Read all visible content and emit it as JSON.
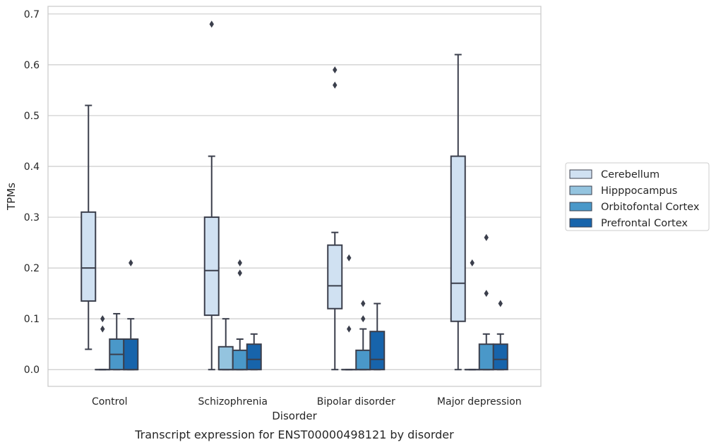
{
  "chart_data": {
    "type": "boxplot",
    "caption": "Transcript expression for ENST00000498121 by disorder",
    "xlabel": "Disorder",
    "ylabel": "TPMs",
    "ylim": [
      -0.033,
      0.715
    ],
    "yticks": [
      0.0,
      0.1,
      0.2,
      0.3,
      0.4,
      0.5,
      0.6,
      0.7
    ],
    "ytick_labels": [
      "0.0",
      "0.1",
      "0.2",
      "0.3",
      "0.4",
      "0.5",
      "0.6",
      "0.7"
    ],
    "grid": "horizontal",
    "legend_position": "right",
    "categories": [
      "Control",
      "Schizophrenia",
      "Bipolar disorder",
      "Major depression"
    ],
    "series": [
      {
        "name": "Cerebellum",
        "color": "#d0e1f2",
        "boxes": [
          {
            "whislo": 0.04,
            "q1": 0.135,
            "med": 0.2,
            "q3": 0.31,
            "whishi": 0.52,
            "fliers": []
          },
          {
            "whislo": 0.0,
            "q1": 0.107,
            "med": 0.195,
            "q3": 0.3,
            "whishi": 0.42,
            "fliers": [
              0.68
            ]
          },
          {
            "whislo": 0.0,
            "q1": 0.12,
            "med": 0.165,
            "q3": 0.245,
            "whishi": 0.27,
            "fliers": [
              0.56,
              0.59
            ]
          },
          {
            "whislo": 0.0,
            "q1": 0.095,
            "med": 0.17,
            "q3": 0.42,
            "whishi": 0.62,
            "fliers": []
          }
        ]
      },
      {
        "name": "Hipppocampus",
        "color": "#94c4df",
        "boxes": [
          {
            "whislo": 0.0,
            "q1": 0.0,
            "med": 0.0,
            "q3": 0.0,
            "whishi": 0.0,
            "fliers": [
              0.08,
              0.1
            ]
          },
          {
            "whislo": 0.0,
            "q1": 0.0,
            "med": 0.0,
            "q3": 0.045,
            "whishi": 0.1,
            "fliers": []
          },
          {
            "whislo": 0.0,
            "q1": 0.0,
            "med": 0.0,
            "q3": 0.0,
            "whishi": 0.0,
            "fliers": [
              0.08,
              0.22
            ]
          },
          {
            "whislo": 0.0,
            "q1": 0.0,
            "med": 0.0,
            "q3": 0.0,
            "whishi": 0.0,
            "fliers": [
              0.21
            ]
          }
        ]
      },
      {
        "name": "Orbitofontal Cortex",
        "color": "#4a98c9",
        "boxes": [
          {
            "whislo": 0.0,
            "q1": 0.0,
            "med": 0.03,
            "q3": 0.06,
            "whishi": 0.11,
            "fliers": []
          },
          {
            "whislo": 0.0,
            "q1": 0.0,
            "med": 0.0,
            "q3": 0.038,
            "whishi": 0.06,
            "fliers": [
              0.19,
              0.21
            ]
          },
          {
            "whislo": 0.0,
            "q1": 0.0,
            "med": 0.0,
            "q3": 0.038,
            "whishi": 0.08,
            "fliers": [
              0.1,
              0.13
            ]
          },
          {
            "whislo": 0.0,
            "q1": 0.0,
            "med": 0.0,
            "q3": 0.05,
            "whishi": 0.07,
            "fliers": [
              0.15,
              0.26
            ]
          }
        ]
      },
      {
        "name": "Prefrontal Cortex",
        "color": "#1764ab",
        "boxes": [
          {
            "whislo": 0.0,
            "q1": 0.0,
            "med": 0.0,
            "q3": 0.06,
            "whishi": 0.1,
            "fliers": [
              0.21
            ]
          },
          {
            "whislo": 0.0,
            "q1": 0.0,
            "med": 0.02,
            "q3": 0.05,
            "whishi": 0.07,
            "fliers": []
          },
          {
            "whislo": 0.0,
            "q1": 0.0,
            "med": 0.02,
            "q3": 0.075,
            "whishi": 0.13,
            "fliers": []
          },
          {
            "whislo": 0.0,
            "q1": 0.0,
            "med": 0.02,
            "q3": 0.05,
            "whishi": 0.07,
            "fliers": [
              0.13
            ]
          }
        ]
      }
    ]
  }
}
